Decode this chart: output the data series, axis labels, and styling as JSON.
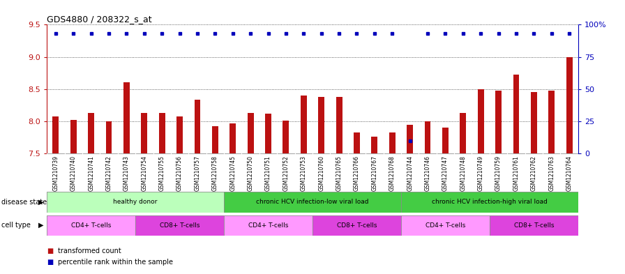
{
  "title": "GDS4880 / 208322_s_at",
  "samples": [
    "GSM1210739",
    "GSM1210740",
    "GSM1210741",
    "GSM1210742",
    "GSM1210743",
    "GSM1210754",
    "GSM1210755",
    "GSM1210756",
    "GSM1210757",
    "GSM1210758",
    "GSM1210745",
    "GSM1210750",
    "GSM1210751",
    "GSM1210752",
    "GSM1210753",
    "GSM1210760",
    "GSM1210765",
    "GSM1210766",
    "GSM1210767",
    "GSM1210768",
    "GSM1210744",
    "GSM1210746",
    "GSM1210747",
    "GSM1210748",
    "GSM1210749",
    "GSM1210759",
    "GSM1210761",
    "GSM1210762",
    "GSM1210763",
    "GSM1210764"
  ],
  "bar_values": [
    8.08,
    8.02,
    8.13,
    8.0,
    8.61,
    8.13,
    8.13,
    8.08,
    8.33,
    7.92,
    7.97,
    8.13,
    8.12,
    8.01,
    8.4,
    8.38,
    8.38,
    7.83,
    7.76,
    7.83,
    7.95,
    8.0,
    7.9,
    8.13,
    8.5,
    8.48,
    8.72,
    8.45,
    8.47,
    9.0
  ],
  "percentile_values": [
    93,
    93,
    93,
    93,
    93,
    93,
    93,
    93,
    93,
    93,
    93,
    93,
    93,
    93,
    93,
    93,
    93,
    93,
    93,
    93,
    10,
    93,
    93,
    93,
    93,
    93,
    93,
    93,
    93,
    93
  ],
  "bar_color": "#bb1111",
  "percentile_color": "#0000bb",
  "ylim_left": [
    7.5,
    9.5
  ],
  "ylim_right": [
    0,
    100
  ],
  "yticks_left": [
    7.5,
    8.0,
    8.5,
    9.0,
    9.5
  ],
  "yticks_right": [
    0,
    25,
    50,
    75,
    100
  ],
  "disease_state_groups": [
    {
      "label": "healthy donor",
      "start": 0,
      "end": 9,
      "color": "#bbffbb"
    },
    {
      "label": "chronic HCV infection-low viral load",
      "start": 10,
      "end": 19,
      "color": "#44cc44"
    },
    {
      "label": "chronic HCV infection-high viral load",
      "start": 20,
      "end": 29,
      "color": "#44cc44"
    }
  ],
  "cell_type_groups": [
    {
      "label": "CD4+ T-cells",
      "start": 0,
      "end": 4,
      "color": "#ff99ff"
    },
    {
      "label": "CD8+ T-cells",
      "start": 5,
      "end": 9,
      "color": "#dd44dd"
    },
    {
      "label": "CD4+ T-cells",
      "start": 10,
      "end": 14,
      "color": "#ff99ff"
    },
    {
      "label": "CD8+ T-cells",
      "start": 15,
      "end": 19,
      "color": "#dd44dd"
    },
    {
      "label": "CD4+ T-cells",
      "start": 20,
      "end": 24,
      "color": "#ff99ff"
    },
    {
      "label": "CD8+ T-cells",
      "start": 25,
      "end": 29,
      "color": "#dd44dd"
    }
  ],
  "grid_color": "#333333",
  "plot_bg_color": "#ffffff",
  "tick_area_bg": "#dddddd",
  "bar_width": 0.35,
  "legend_items": [
    {
      "label": "transformed count",
      "color": "#bb1111"
    },
    {
      "label": "percentile rank within the sample",
      "color": "#0000bb"
    }
  ]
}
